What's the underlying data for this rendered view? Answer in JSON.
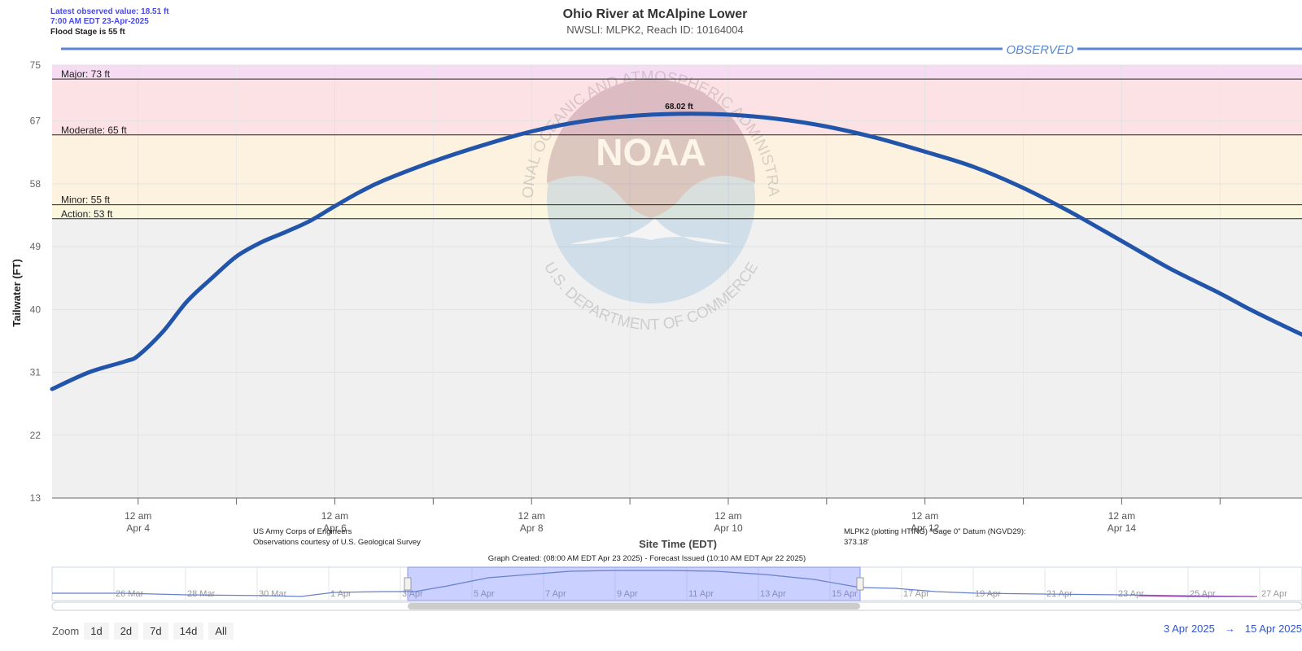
{
  "header": {
    "latest_line1": "Latest observed value: 18.51 ft",
    "latest_line2": "7:00 AM EDT 23-Apr-2025",
    "flood_stage": "Flood Stage is 55 ft",
    "title": "Ohio River at McAlpine Lower",
    "subtitle": "NWSLI: MLPK2, Reach ID: 10164004",
    "observed_label": "OBSERVED"
  },
  "footer": {
    "credit1": "US Army Corps of Engineers",
    "credit2": "Observations courtesy of U.S. Geological Survey",
    "datum1": "MLPK2 (plotting HTIRG) \"Gage 0\" Datum (NGVD29):",
    "datum2": "373.18'",
    "created": "Graph Created: (08:00 AM EDT Apr 23 2025) - Forecast Issued (10:10 AM EDT Apr 22 2025)"
  },
  "watermark": {
    "outer_top": "NATIONAL OCEANIC AND ATMOSPHERIC ADMINISTRATION",
    "outer_bottom": "U.S. DEPARTMENT OF COMMERCE",
    "inner": "NOAA"
  },
  "zoom": {
    "label": "Zoom",
    "buttons": [
      "1d",
      "2d",
      "7d",
      "14d",
      "All"
    ]
  },
  "range": {
    "start": "3 Apr 2025",
    "arrow": "→",
    "end": "15 Apr 2025"
  },
  "navigator_labels": [
    "26 Mar",
    "28 Mar",
    "30 Mar",
    "1 Apr",
    "3 Apr",
    "5 Apr",
    "7 Apr",
    "9 Apr",
    "11 Apr",
    "13 Apr",
    "15 Apr",
    "17 Apr",
    "19 Apr",
    "21 Apr",
    "23 Apr",
    "25 Apr",
    "27 Apr"
  ],
  "chart_data": {
    "type": "line",
    "ylabel": "Tailwater (FT)",
    "xlabel": "Site Time (EDT)",
    "y_ticks": [
      75,
      67,
      58,
      49,
      40,
      31,
      22,
      13
    ],
    "ylim": [
      13,
      75
    ],
    "x_start": "2025-04-03T03:00",
    "x_end": "2025-04-15T20:00",
    "x_ticks": [
      {
        "time": "2025-04-04T00:00",
        "line1": "12 am",
        "line2": "Apr 4"
      },
      {
        "time": "2025-04-06T00:00",
        "line1": "12 am",
        "line2": "Apr 6"
      },
      {
        "time": "2025-04-08T00:00",
        "line1": "12 am",
        "line2": "Apr 8"
      },
      {
        "time": "2025-04-10T00:00",
        "line1": "12 am",
        "line2": "Apr 10"
      },
      {
        "time": "2025-04-12T00:00",
        "line1": "12 am",
        "line2": "Apr 12"
      },
      {
        "time": "2025-04-14T00:00",
        "line1": "12 am",
        "line2": "Apr 14"
      }
    ],
    "minor_ticks": [
      "2025-04-05T00:00",
      "2025-04-07T00:00",
      "2025-04-09T00:00",
      "2025-04-11T00:00",
      "2025-04-13T00:00",
      "2025-04-15T00:00"
    ],
    "flood_levels": [
      {
        "name": "Major",
        "value": 73,
        "label": "Major: 73 ft",
        "color": "#f3dcf5"
      },
      {
        "name": "Moderate",
        "value": 65,
        "label": "Moderate: 65 ft",
        "color": "#fde3e6"
      },
      {
        "name": "Minor",
        "value": 55,
        "label": "Minor: 55 ft",
        "color": "#fdf2e0"
      },
      {
        "name": "Action",
        "value": 53,
        "label": "Action: 53 ft",
        "color": "#fbf7df"
      }
    ],
    "peak": {
      "time": "2025-04-09T12:00",
      "value": 68.02,
      "label": "68.02 ft"
    },
    "series": [
      {
        "color": "#2255aa",
        "points": [
          [
            "2025-04-03T03:00",
            28.6
          ],
          [
            "2025-04-03T12:00",
            31.0
          ],
          [
            "2025-04-03T21:00",
            32.6
          ],
          [
            "2025-04-04T00:00",
            33.4
          ],
          [
            "2025-04-04T06:00",
            36.8
          ],
          [
            "2025-04-04T12:00",
            41.2
          ],
          [
            "2025-04-04T18:00",
            44.5
          ],
          [
            "2025-04-05T00:00",
            47.6
          ],
          [
            "2025-04-05T06:00",
            49.6
          ],
          [
            "2025-04-05T12:00",
            51.1
          ],
          [
            "2025-04-05T18:00",
            52.7
          ],
          [
            "2025-04-06T00:00",
            54.8
          ],
          [
            "2025-04-06T06:00",
            56.8
          ],
          [
            "2025-04-06T12:00",
            58.5
          ],
          [
            "2025-04-07T00:00",
            61.2
          ],
          [
            "2025-04-07T12:00",
            63.5
          ],
          [
            "2025-04-08T00:00",
            65.5
          ],
          [
            "2025-04-08T12:00",
            66.9
          ],
          [
            "2025-04-09T00:00",
            67.7
          ],
          [
            "2025-04-09T12:00",
            68.02
          ],
          [
            "2025-04-10T00:00",
            67.9
          ],
          [
            "2025-04-10T12:00",
            67.3
          ],
          [
            "2025-04-11T00:00",
            66.2
          ],
          [
            "2025-04-11T12:00",
            64.6
          ],
          [
            "2025-04-12T00:00",
            62.6
          ],
          [
            "2025-04-12T12:00",
            60.4
          ],
          [
            "2025-04-13T00:00",
            57.4
          ],
          [
            "2025-04-13T12:00",
            53.8
          ],
          [
            "2025-04-14T00:00",
            49.8
          ],
          [
            "2025-04-14T12:00",
            45.8
          ],
          [
            "2025-04-15T00:00",
            42.3
          ],
          [
            "2025-04-15T08:00",
            39.8
          ],
          [
            "2025-04-15T20:00",
            36.4
          ]
        ]
      }
    ]
  }
}
